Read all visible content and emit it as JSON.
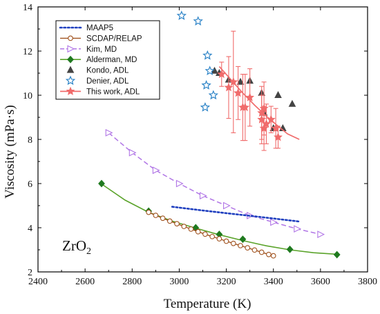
{
  "chart_data": {
    "type": "scatter",
    "title": "",
    "xlabel": "Temperature (K)",
    "ylabel": "Viscosity (mPa·s)",
    "xlim": [
      2400,
      3800
    ],
    "ylim": [
      2,
      14
    ],
    "xticks": [
      2400,
      2600,
      2800,
      3000,
      3200,
      3400,
      3600,
      3800
    ],
    "yticks": [
      2,
      4,
      6,
      8,
      10,
      12,
      14
    ],
    "grid": false,
    "legend_position": "top-left",
    "annotation": {
      "text_main": "ZrO",
      "text_sub": "2"
    },
    "series": [
      {
        "name": "MAAP5",
        "style": "dotted-line",
        "color": "#1f3fbf",
        "x": [
          2970,
          3100,
          3200,
          3300,
          3400,
          3510
        ],
        "y": [
          4.95,
          4.78,
          4.66,
          4.54,
          4.42,
          4.28
        ]
      },
      {
        "name": "SCDAP/RELAP",
        "style": "line-open-circle",
        "color": "#a0521e",
        "x": [
          2870,
          2900,
          2930,
          2960,
          2990,
          3020,
          3050,
          3080,
          3110,
          3140,
          3170,
          3200,
          3230,
          3260,
          3290,
          3320,
          3350,
          3380,
          3400
        ],
        "y": [
          4.7,
          4.56,
          4.43,
          4.3,
          4.18,
          4.06,
          3.94,
          3.82,
          3.71,
          3.6,
          3.5,
          3.39,
          3.29,
          3.19,
          3.09,
          2.99,
          2.89,
          2.79,
          2.73
        ]
      },
      {
        "name": "Kim, MD",
        "style": "dashed-line-open-triangle",
        "color": "#b176e6",
        "x": [
          2700,
          2800,
          2900,
          3000,
          3100,
          3200,
          3300,
          3400,
          3500,
          3600
        ],
        "y": [
          8.3,
          7.4,
          6.6,
          6.0,
          5.45,
          5.0,
          4.55,
          4.25,
          3.95,
          3.7
        ]
      },
      {
        "name": "Alderman, MD",
        "style": "line-filled-diamond",
        "color": "#1f7a1f",
        "line_color": "#5aa32a",
        "fit_x": [
          2670,
          2770,
          2870,
          2970,
          3070,
          3170,
          3270,
          3370,
          3470,
          3570,
          3670
        ],
        "fit_y": [
          5.98,
          5.25,
          4.7,
          4.3,
          3.98,
          3.68,
          3.42,
          3.18,
          3.0,
          2.87,
          2.8
        ],
        "x": [
          2670,
          2870,
          3070,
          3170,
          3270,
          3470,
          3670
        ],
        "y": [
          6.0,
          4.75,
          4.0,
          3.7,
          3.48,
          3.02,
          2.78
        ]
      },
      {
        "name": "Kondo, ADL",
        "style": "filled-triangle",
        "color": "#444444",
        "x": [
          3150,
          3170,
          3210,
          3260,
          3300,
          3350,
          3360,
          3400,
          3420,
          3440,
          3480
        ],
        "y": [
          11.1,
          11.0,
          10.7,
          10.6,
          10.65,
          10.1,
          9.2,
          8.5,
          10.0,
          8.5,
          9.6
        ]
      },
      {
        "name": "Denier, ADL",
        "style": "open-star",
        "color": "#2c83c7",
        "x": [
          3010,
          3080,
          3120,
          3130,
          3115,
          3145,
          3110
        ],
        "y": [
          13.6,
          13.35,
          11.8,
          11.1,
          10.45,
          10.0,
          9.45
        ]
      },
      {
        "name": "This work, ADL",
        "style": "line-filled-star-errorbar",
        "color": "#f06b6b",
        "fit_x": [
          3170,
          3220,
          3270,
          3320,
          3370,
          3420,
          3460,
          3510
        ],
        "fit_y": [
          11.3,
          10.7,
          10.1,
          9.55,
          9.05,
          8.6,
          8.25,
          8.0
        ],
        "x": [
          3180,
          3210,
          3230,
          3250,
          3270,
          3280,
          3300,
          3350,
          3350,
          3360,
          3360,
          3370,
          3390,
          3410,
          3420
        ],
        "y": [
          10.95,
          10.35,
          10.6,
          10.1,
          9.45,
          9.45,
          9.9,
          9.2,
          8.9,
          9.4,
          8.5,
          8.7,
          8.9,
          8.5,
          8.1
        ],
        "err": [
          0.55,
          1.4,
          2.3,
          1.2,
          1.5,
          1.5,
          1.3,
          1.2,
          1.1,
          1.2,
          1.0,
          0.9,
          0.6,
          0.9,
          0.5
        ]
      }
    ]
  }
}
